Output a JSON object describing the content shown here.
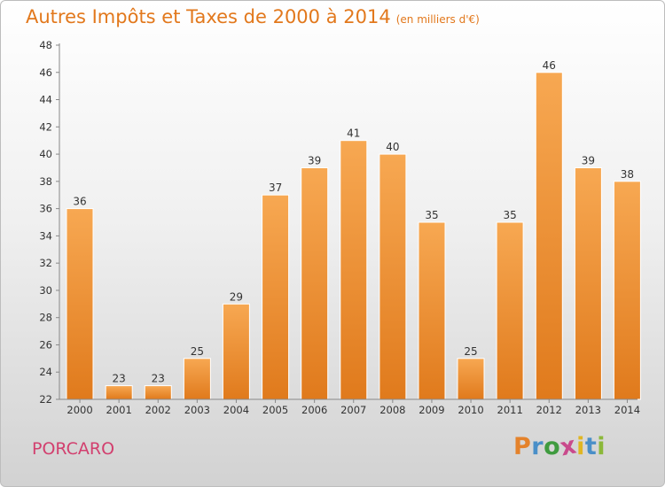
{
  "header": {
    "title": "Autres Impôts et Taxes de 2000 à 2014",
    "unit": "(en milliers d'€)"
  },
  "location": "PORCARO",
  "brand": {
    "name": "Proxiti",
    "letters": [
      "P",
      "r",
      "o",
      "x",
      "i",
      "t",
      "i"
    ],
    "letter_colors": [
      "#e4822b",
      "#4a8fc8",
      "#3f9b3f",
      "#c94a8c",
      "#e0b623",
      "#4a8fc8",
      "#8bb83a"
    ]
  },
  "colors": {
    "title": "#e2781c",
    "bar_top": "#f7a852",
    "bar_bottom": "#e07a1c",
    "town": "#d23f6e"
  },
  "chart_data": {
    "type": "bar",
    "title": "Autres Impôts et Taxes de 2000 à 2014",
    "subtitle": "(en milliers d'€)",
    "xlabel": "",
    "ylabel": "",
    "categories": [
      "2000",
      "2001",
      "2002",
      "2003",
      "2004",
      "2005",
      "2006",
      "2007",
      "2008",
      "2009",
      "2010",
      "2011",
      "2012",
      "2013",
      "2014"
    ],
    "values": [
      36,
      23,
      23,
      25,
      29,
      37,
      39,
      41,
      40,
      35,
      25,
      35,
      46,
      39,
      38
    ],
    "ylim": [
      22,
      48
    ],
    "yticks": [
      22,
      24,
      26,
      28,
      30,
      32,
      34,
      36,
      38,
      40,
      42,
      44,
      46,
      48
    ],
    "grid": false,
    "legend": "none"
  }
}
